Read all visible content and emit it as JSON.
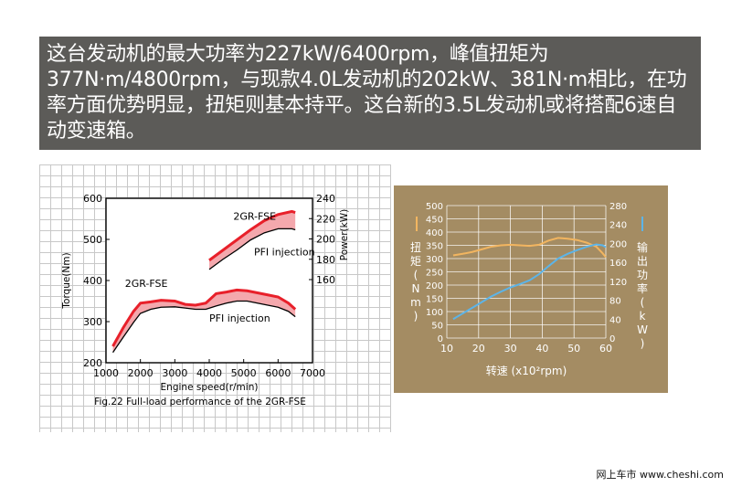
{
  "caption": {
    "text": "这台发动机的最大功率为227kW/6400rpm，峰值扭矩为377N·m/4800rpm，与现款4.0L发动机的202kW、381N·m相比，在功率方面优势明显，扭矩则基本持平。这台新的3.5L发动机或将搭配6速自动变速箱。"
  },
  "footer": {
    "text": "网上车市 www.cheshi.com"
  },
  "colors": {
    "fill": "#f4a8ad",
    "line_red": "#e8202a",
    "line_black": "#000000",
    "orange": "#f2b560",
    "blue": "#5cb4e8",
    "panel": "#a48c63"
  },
  "chart_data": [
    {
      "type": "line",
      "title": "Fig.22 Full-load performance of the 2GR-FSE",
      "xlabel": "Engine speed(r/min)",
      "ylabel_left": "Torque(Nm)",
      "ylabel_right": "Power(kW)",
      "xlim": [
        1000,
        7000
      ],
      "ylim_left": [
        200,
        600
      ],
      "ylim_right": [
        160,
        240
      ],
      "x_ticks": [
        "1000",
        "2000",
        "3000",
        "4000",
        "5000",
        "6000",
        "7000"
      ],
      "y_ticks_left": [
        "200",
        "300",
        "400",
        "500",
        "600"
      ],
      "y_ticks_right": [
        "160",
        "180",
        "200",
        "220",
        "240"
      ],
      "annotations": [
        {
          "text": "2GR-FSE",
          "axis": "power",
          "x": 4700,
          "y": 219
        },
        {
          "text": "PFI injection",
          "axis": "power",
          "x": 5300,
          "y": 184
        },
        {
          "text": "2GR-FSE",
          "axis": "torque",
          "x": 1550,
          "y": 385
        },
        {
          "text": "PFI injection",
          "axis": "torque",
          "x": 4000,
          "y": 300
        }
      ],
      "series": [
        {
          "name": "2GR-FSE",
          "quantity": "torque",
          "unit": "Nm",
          "x": [
            1200,
            1500,
            1800,
            2000,
            2300,
            2600,
            3000,
            3300,
            3600,
            3900,
            4200,
            4500,
            4800,
            5100,
            5400,
            5700,
            6000,
            6300,
            6500
          ],
          "values": [
            240,
            285,
            325,
            345,
            348,
            352,
            350,
            342,
            340,
            345,
            368,
            372,
            377,
            375,
            370,
            365,
            360,
            345,
            330
          ]
        },
        {
          "name": "PFI injection",
          "quantity": "torque",
          "unit": "Nm",
          "x": [
            1200,
            1500,
            1800,
            2000,
            2300,
            2600,
            3000,
            3300,
            3600,
            3900,
            4200,
            4500,
            4800,
            5100,
            5400,
            5700,
            6000,
            6300,
            6500
          ],
          "values": [
            225,
            262,
            298,
            320,
            330,
            335,
            336,
            333,
            330,
            330,
            338,
            345,
            350,
            350,
            345,
            340,
            335,
            325,
            312
          ]
        },
        {
          "name": "2GR-FSE",
          "quantity": "power",
          "unit": "kW",
          "x": [
            4000,
            4400,
            4800,
            5200,
            5600,
            6000,
            6400,
            6500
          ],
          "values": [
            179,
            189,
            199,
            209,
            218,
            224,
            227,
            226
          ]
        },
        {
          "name": "PFI injection",
          "quantity": "power",
          "unit": "kW",
          "x": [
            4000,
            4400,
            4800,
            5200,
            5600,
            6000,
            6400,
            6500
          ],
          "values": [
            170,
            180,
            189,
            199,
            206,
            210,
            210,
            209
          ]
        }
      ]
    },
    {
      "type": "line",
      "xlabel": "转速 (x10²rpm)",
      "ylabel_left": "扭矩 (Nm)",
      "ylabel_right": "输出功率 (kW)",
      "xlim": [
        10,
        60
      ],
      "ylim_left": [
        0,
        500
      ],
      "ylim_right": [
        0,
        280
      ],
      "x_ticks": [
        "10",
        "20",
        "30",
        "40",
        "50",
        "60"
      ],
      "y_ticks_left": [
        "0",
        "50",
        "100",
        "150",
        "200",
        "250",
        "300",
        "350",
        "400",
        "450",
        "500"
      ],
      "y_ticks_right": [
        "0",
        "40",
        "80",
        "120",
        "160",
        "200",
        "240",
        "280"
      ],
      "series": [
        {
          "name": "扭矩",
          "axis": "left",
          "x": [
            12,
            15,
            18,
            21,
            24,
            27,
            30,
            33,
            36,
            39,
            42,
            45,
            48,
            51,
            54,
            57,
            59,
            60
          ],
          "values": [
            312,
            318,
            325,
            335,
            345,
            350,
            352,
            350,
            348,
            352,
            368,
            378,
            375,
            370,
            360,
            345,
            320,
            305
          ]
        },
        {
          "name": "输出功率",
          "axis": "right",
          "x": [
            12,
            15,
            18,
            21,
            24,
            27,
            30,
            33,
            36,
            39,
            42,
            45,
            48,
            51,
            54,
            57,
            59,
            60
          ],
          "values": [
            40,
            52,
            64,
            76,
            88,
            98,
            107,
            114,
            122,
            135,
            152,
            168,
            178,
            186,
            193,
            198,
            196,
            192
          ]
        }
      ]
    }
  ]
}
